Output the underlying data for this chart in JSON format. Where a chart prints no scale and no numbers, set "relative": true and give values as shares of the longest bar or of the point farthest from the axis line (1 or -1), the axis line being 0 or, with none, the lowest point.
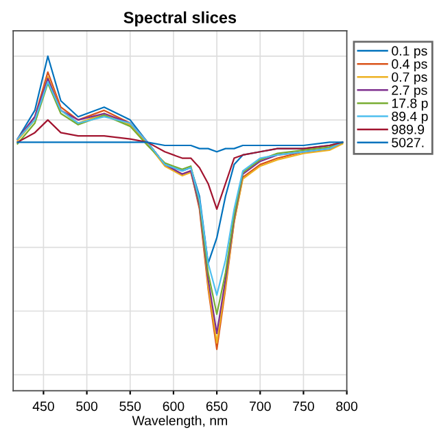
{
  "chart_data": {
    "type": "line",
    "title": "Spectral slices",
    "xlabel": "Wavelength, nm",
    "relative": true,
    "grid": true,
    "legend": "top right",
    "tick_labels": "x",
    "marker": "none",
    "line_style": "solid",
    "xlim": [
      415,
      800
    ],
    "xticks": [
      450,
      500,
      550,
      600,
      650,
      700,
      750,
      800
    ],
    "x": [
      420,
      440,
      455,
      470,
      490,
      520,
      550,
      570,
      590,
      610,
      620,
      630,
      640,
      650,
      660,
      670,
      680,
      700,
      720,
      750,
      780,
      795
    ],
    "series": [
      {
        "name": "0.1 ps",
        "color": "#0072bd",
        "values": [
          0.74,
          0.83,
          1.0,
          0.86,
          0.81,
          0.84,
          0.8,
          0.73,
          0.66,
          0.64,
          0.65,
          0.56,
          0.35,
          0.43,
          0.56,
          0.66,
          0.69,
          0.7,
          0.71,
          0.71,
          0.72,
          0.73
        ]
      },
      {
        "name": "0.4 ps",
        "color": "#d95319",
        "values": [
          0.74,
          0.81,
          0.95,
          0.84,
          0.8,
          0.83,
          0.79,
          0.73,
          0.66,
          0.63,
          0.64,
          0.52,
          0.27,
          0.08,
          0.27,
          0.48,
          0.62,
          0.66,
          0.68,
          0.7,
          0.71,
          0.73
        ]
      },
      {
        "name": "0.7 ps",
        "color": "#edb120",
        "values": [
          0.735,
          0.8,
          0.935,
          0.83,
          0.79,
          0.82,
          0.785,
          0.725,
          0.655,
          0.625,
          0.635,
          0.53,
          0.28,
          0.1,
          0.28,
          0.48,
          0.615,
          0.655,
          0.675,
          0.695,
          0.705,
          0.725
        ]
      },
      {
        "name": "2.7 ps",
        "color": "#7e2f8e",
        "values": [
          0.74,
          0.81,
          0.93,
          0.83,
          0.8,
          0.82,
          0.79,
          0.73,
          0.66,
          0.63,
          0.64,
          0.53,
          0.3,
          0.13,
          0.3,
          0.49,
          0.63,
          0.67,
          0.69,
          0.7,
          0.71,
          0.73
        ]
      },
      {
        "name": "17.8 p",
        "color": "#77ac30",
        "values": [
          0.725,
          0.79,
          0.915,
          0.82,
          0.785,
          0.815,
          0.78,
          0.72,
          0.665,
          0.645,
          0.655,
          0.54,
          0.32,
          0.19,
          0.32,
          0.5,
          0.635,
          0.675,
          0.695,
          0.705,
          0.715,
          0.728
        ]
      },
      {
        "name": "89.4 p",
        "color": "#4dbeee",
        "values": [
          0.74,
          0.8,
          0.92,
          0.83,
          0.79,
          0.81,
          0.79,
          0.73,
          0.66,
          0.64,
          0.65,
          0.55,
          0.35,
          0.25,
          0.36,
          0.52,
          0.64,
          0.68,
          0.69,
          0.7,
          0.71,
          0.73
        ]
      },
      {
        "name": "989.9",
        "color": "#a2142f",
        "values": [
          0.73,
          0.76,
          0.8,
          0.76,
          0.75,
          0.75,
          0.74,
          0.73,
          0.7,
          0.68,
          0.68,
          0.65,
          0.6,
          0.52,
          0.6,
          0.68,
          0.69,
          0.7,
          0.71,
          0.71,
          0.72,
          0.73
        ]
      },
      {
        "name": "5027.",
        "color": "#0072bd",
        "values": [
          0.73,
          0.73,
          0.73,
          0.73,
          0.73,
          0.73,
          0.73,
          0.73,
          0.72,
          0.72,
          0.72,
          0.71,
          0.71,
          0.7,
          0.71,
          0.71,
          0.72,
          0.72,
          0.72,
          0.72,
          0.73,
          0.73
        ]
      }
    ]
  }
}
